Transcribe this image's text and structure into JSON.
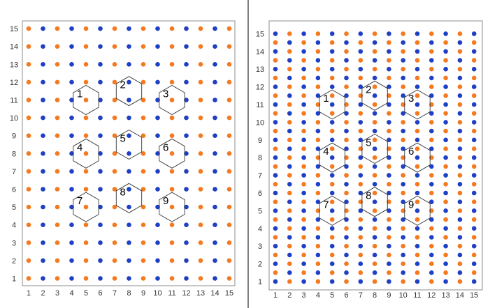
{
  "colors": {
    "blue": "#1f3fc4",
    "orange": "#f5791f",
    "background": "#ffffff"
  },
  "panels": [
    {
      "x_ticks": [
        "1",
        "2",
        "3",
        "4",
        "5",
        "6",
        "7",
        "8",
        "9",
        "10",
        "11",
        "12",
        "13",
        "14",
        "15"
      ],
      "y_ticks": [
        "1",
        "2",
        "3",
        "4",
        "5",
        "6",
        "7",
        "8",
        "9",
        "10",
        "11",
        "12",
        "13",
        "14",
        "15"
      ],
      "hexagons": [
        {
          "label": "1",
          "cx": 5,
          "cy": 11
        },
        {
          "label": "2",
          "cx": 8,
          "cy": 11.5
        },
        {
          "label": "3",
          "cx": 11,
          "cy": 11
        },
        {
          "label": "4",
          "cx": 5,
          "cy": 8
        },
        {
          "label": "5",
          "cx": 8,
          "cy": 8.5
        },
        {
          "label": "6",
          "cx": 11,
          "cy": 8
        },
        {
          "label": "7",
          "cx": 5,
          "cy": 5
        },
        {
          "label": "8",
          "cx": 8,
          "cy": 5.5
        },
        {
          "label": "9",
          "cx": 11,
          "cy": 5
        }
      ]
    },
    {
      "x_ticks": [
        "1",
        "2",
        "3",
        "4",
        "5",
        "6",
        "7",
        "8",
        "9",
        "10",
        "11",
        "12",
        "13",
        "14",
        "15"
      ],
      "y_ticks": [
        "1",
        "2",
        "3",
        "4",
        "5",
        "6",
        "7",
        "8",
        "9",
        "10",
        "11",
        "12",
        "13",
        "14",
        "15"
      ],
      "hexagons": [
        {
          "label": "1",
          "cx": 5,
          "cy": 11
        },
        {
          "label": "2",
          "cx": 8,
          "cy": 11.5
        },
        {
          "label": "3",
          "cx": 11,
          "cy": 11
        },
        {
          "label": "4",
          "cx": 5,
          "cy": 8
        },
        {
          "label": "5",
          "cx": 8,
          "cy": 8.5
        },
        {
          "label": "6",
          "cx": 11,
          "cy": 8
        },
        {
          "label": "7",
          "cx": 5,
          "cy": 5
        },
        {
          "label": "8",
          "cx": 8,
          "cy": 5.5
        },
        {
          "label": "9",
          "cx": 11,
          "cy": 5
        }
      ]
    }
  ]
}
